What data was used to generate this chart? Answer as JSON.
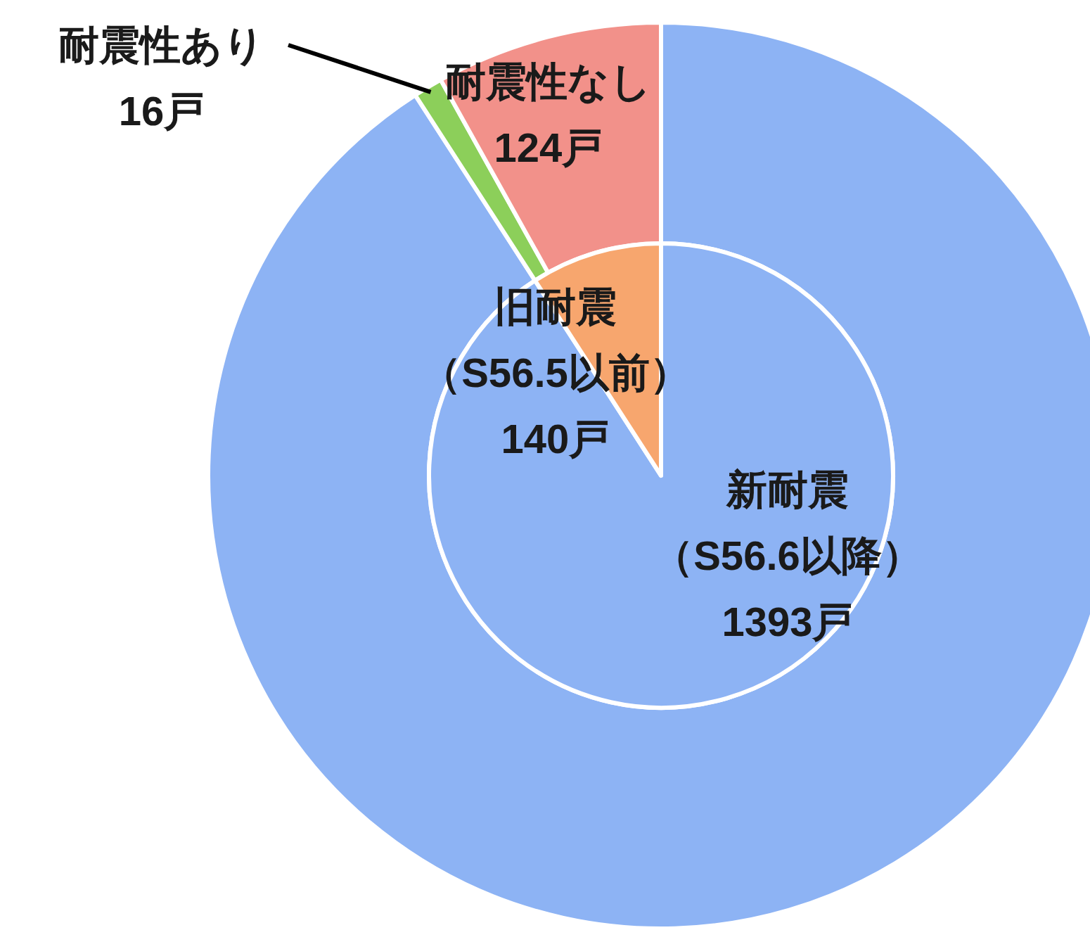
{
  "chart_data": [
    {
      "type": "pie",
      "categories": [
        "新耐震（S56.6以降）",
        "旧耐震（S56.5以前）"
      ],
      "values": [
        1393,
        140
      ],
      "colors": [
        "#8db3f4",
        "#f7a66e"
      ],
      "value_labels": [
        "1393戸",
        "140戸"
      ]
    },
    {
      "type": "donut",
      "categories": [
        null,
        "耐震性あり",
        "耐震性なし"
      ],
      "values": [
        1393,
        16,
        124
      ],
      "colors": [
        "#8db3f4",
        "#8ccf5a",
        "#f2918a"
      ],
      "value_labels": [
        null,
        "16戸",
        "124戸"
      ]
    }
  ]
}
